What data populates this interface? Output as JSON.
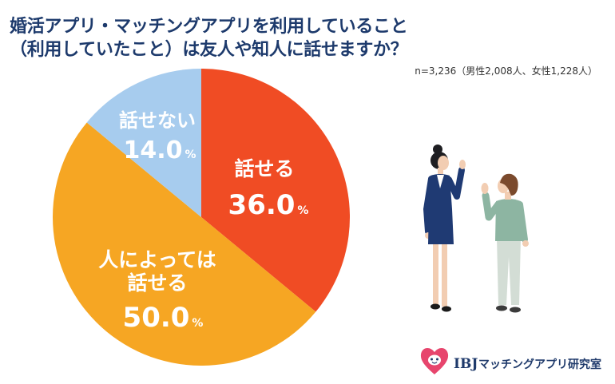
{
  "chart_data": {
    "type": "pie",
    "title": [
      "婚活アプリ・マッチングアプリを利用していること",
      "（利用していたこと）は友人や知人に話せますか？"
    ],
    "sample_note": "n=3,236（男性2,008人、女性1,228人）",
    "categories": [
      "話せる",
      "人によっては話せる",
      "話せない"
    ],
    "values": [
      36.0,
      50.0,
      14.0
    ],
    "unit": "%",
    "colors": [
      "#f04c24",
      "#f6a623",
      "#a7ccee"
    ],
    "label_color": "#ffffff",
    "title_color": "#1d3a6c"
  },
  "logo": {
    "brand": "IBJ",
    "name": "マッチングアプリ研究室",
    "heart_color": "#e7456d",
    "text_color": "#1f3a6b"
  }
}
